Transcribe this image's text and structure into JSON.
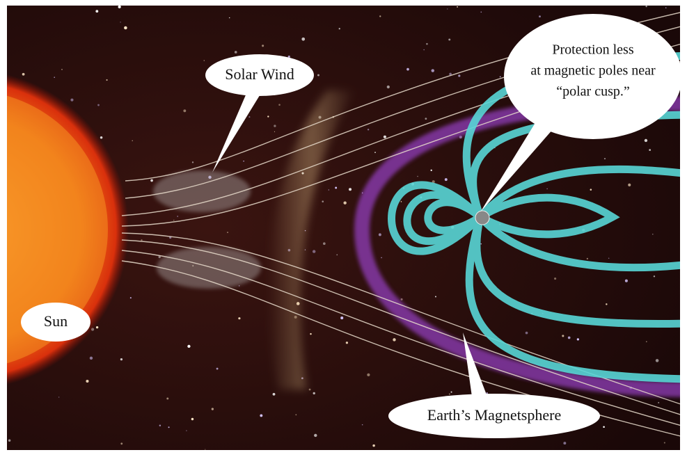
{
  "labels": {
    "solar_wind": "Solar Wind",
    "sun": "Sun",
    "polar_cusp": [
      "Protection less",
      "at magnetic poles near",
      "“polar cusp.”"
    ],
    "magnetosphere": "Earth’s Magnetsphere"
  }
}
